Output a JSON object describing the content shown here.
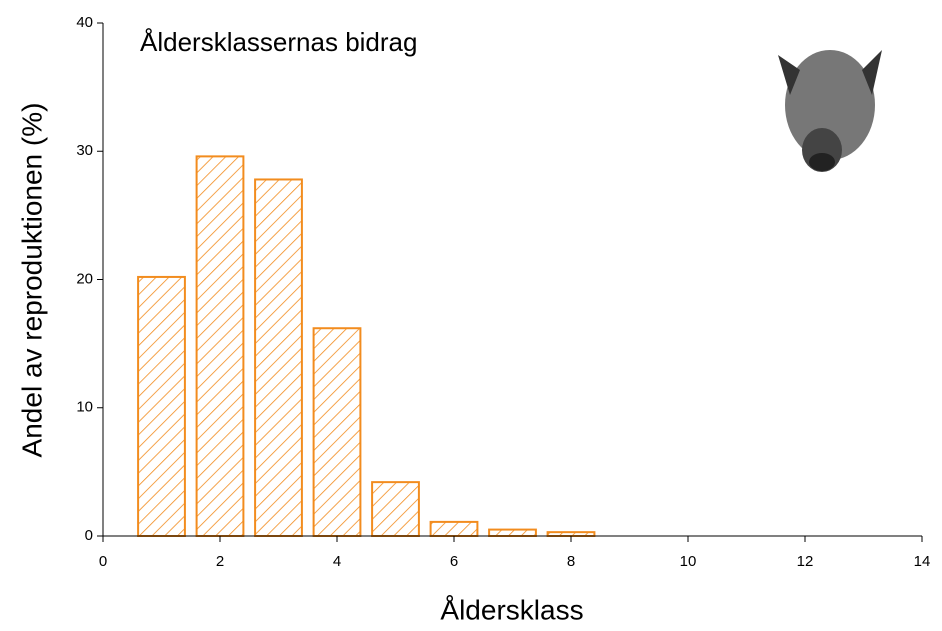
{
  "chart_data": {
    "type": "bar",
    "title": "Åldersklassernas bidrag",
    "x_label": "Åldersklass",
    "y_label": "Andel av reproduktionen (%)",
    "x": [
      1,
      2,
      3,
      4,
      5,
      6,
      7,
      8
    ],
    "values": [
      20.2,
      29.6,
      27.8,
      16.2,
      4.2,
      1.1,
      0.5,
      0.3
    ],
    "color": "#f28c1e",
    "xlim": [
      0,
      14
    ],
    "xticks": [
      0,
      2,
      4,
      6,
      8,
      10,
      12,
      14
    ],
    "ylim": [
      0,
      40
    ],
    "yticks": [
      0,
      10,
      20,
      30,
      40
    ]
  }
}
